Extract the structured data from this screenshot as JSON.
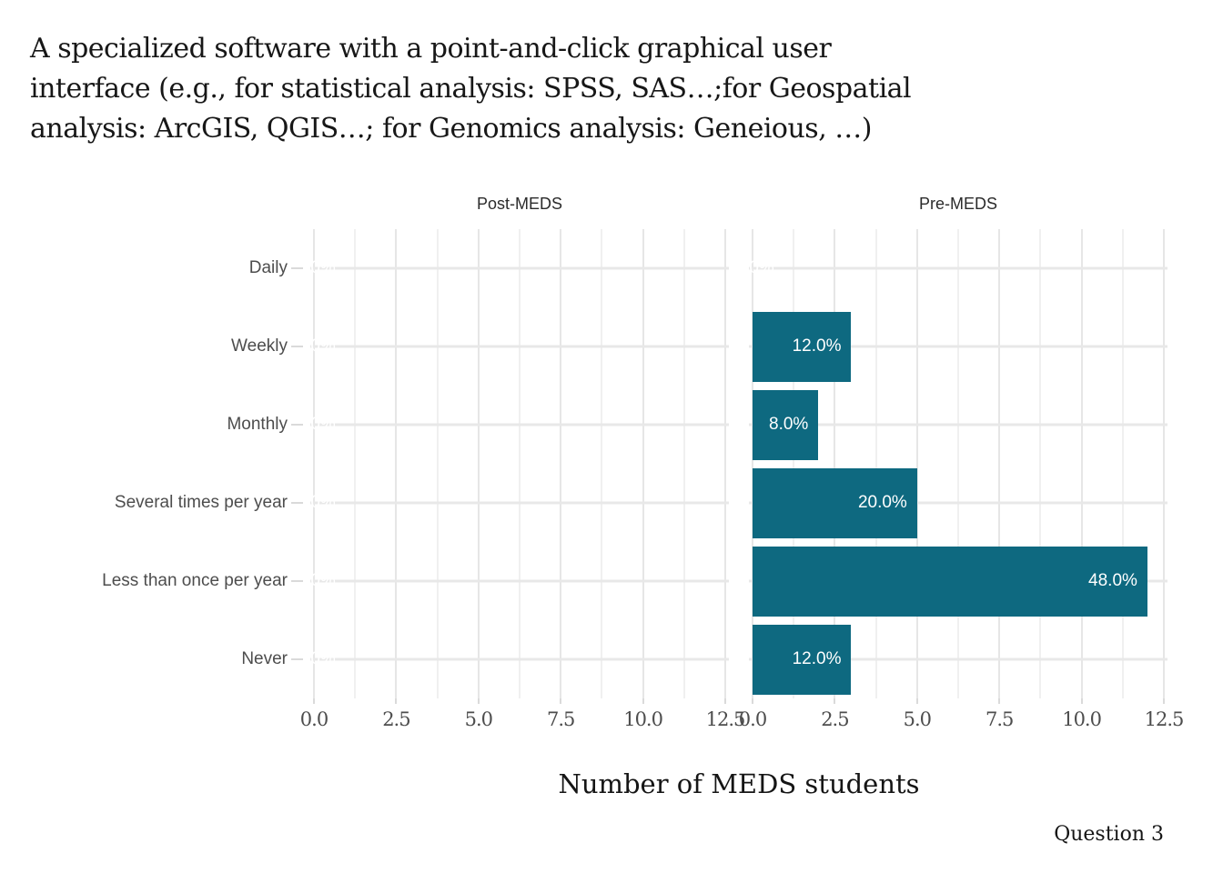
{
  "title": {
    "lines": [
      "A specialized software with a point-and-click graphical user",
      "interface (e.g., for statistical analysis: SPSS, SAS…;for Geospatial",
      "analysis: ArcGIS, QGIS…; for Genomics analysis: Geneious, …)"
    ]
  },
  "caption": "Question 3",
  "chart_data": {
    "type": "bar",
    "orientation": "horizontal",
    "title": "A specialized software with a point-and-click graphical user interface (e.g., for statistical analysis: SPSS, SAS…;for Geospatial analysis: ArcGIS, QGIS…; for Genomics analysis: Geneious, …)",
    "xlabel": "Number of MEDS students",
    "ylabel": "",
    "categories": [
      "Daily",
      "Weekly",
      "Monthly",
      "Several times per year",
      "Less than once per year",
      "Never"
    ],
    "facets": [
      {
        "label": "Post-MEDS",
        "values": [
          0,
          0,
          0,
          0,
          0,
          0
        ],
        "bar_labels": [
          "0.0%",
          "0.0%",
          "0.0%",
          "0.0%",
          "0.0%",
          "0.0%"
        ]
      },
      {
        "label": "Pre-MEDS",
        "values": [
          0,
          3,
          2,
          5,
          12,
          3
        ],
        "bar_labels": [
          "0.0%",
          "12.0%",
          "8.0%",
          "20.0%",
          "48.0%",
          "12.0%"
        ]
      }
    ],
    "xlim": [
      0,
      12.5
    ],
    "x_tick_labels": [
      "0.0",
      "2.5",
      "5.0",
      "7.5",
      "10.0",
      "12.5"
    ],
    "major_tick_step": 2.5,
    "minor_tick_step": 1.25,
    "grid": "on",
    "legend": "none",
    "colors": {
      "bar": "#0e6980",
      "bar_label_text": "#ffffff",
      "grid_major": "#e6e6e6",
      "grid_minor": "#f0f0f0",
      "axis_text": "#4d4d4d",
      "title_text": "#171717",
      "background": "#ffffff"
    }
  }
}
